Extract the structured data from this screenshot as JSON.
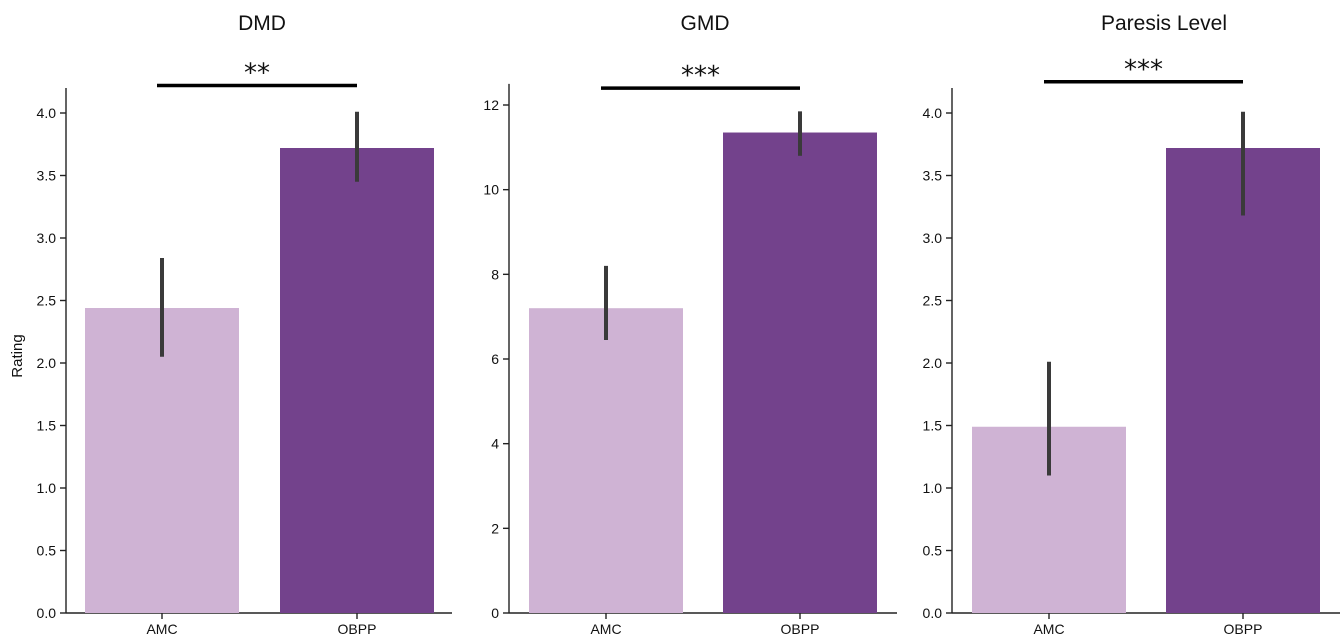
{
  "colors": {
    "AMC": "#cfb3d4",
    "OBPP": "#73428c"
  },
  "chart_data": [
    {
      "type": "bar",
      "title": "DMD",
      "ylabel": "Rating",
      "categories": [
        "AMC",
        "OBPP"
      ],
      "values": [
        2.44,
        3.72
      ],
      "errors": [
        [
          2.05,
          2.84
        ],
        [
          3.45,
          4.01
        ]
      ],
      "ylim": [
        0,
        4.2
      ],
      "yticks": [
        0.0,
        0.5,
        1.0,
        1.5,
        2.0,
        2.5,
        3.0,
        3.5,
        4.0
      ],
      "ytick_labels": [
        "0.0",
        "0.5",
        "1.0",
        "1.5",
        "2.0",
        "2.5",
        "3.0",
        "3.5",
        "4.0"
      ],
      "significance": "**",
      "significance_y": 4.22
    },
    {
      "type": "bar",
      "title": "GMD",
      "ylabel": "",
      "categories": [
        "AMC",
        "OBPP"
      ],
      "values": [
        7.2,
        11.35
      ],
      "errors": [
        [
          6.45,
          8.2
        ],
        [
          10.8,
          11.85
        ]
      ],
      "ylim": [
        0,
        12.5
      ],
      "yticks": [
        0,
        2,
        4,
        6,
        8,
        10,
        12
      ],
      "ytick_labels": [
        "0",
        "2",
        "4",
        "6",
        "8",
        "10",
        "12"
      ],
      "significance": "***",
      "significance_y": 12.4
    },
    {
      "type": "bar",
      "title": "Paresis Level",
      "ylabel": "",
      "categories": [
        "AMC",
        "OBPP"
      ],
      "values": [
        1.49,
        3.72
      ],
      "errors": [
        [
          1.1,
          2.01
        ],
        [
          3.18,
          4.01
        ]
      ],
      "ylim": [
        0,
        4.2
      ],
      "yticks": [
        0.0,
        0.5,
        1.0,
        1.5,
        2.0,
        2.5,
        3.0,
        3.5,
        4.0
      ],
      "ytick_labels": [
        "0.0",
        "0.5",
        "1.0",
        "1.5",
        "2.0",
        "2.5",
        "3.0",
        "3.5",
        "4.0"
      ],
      "significance": "***",
      "significance_y": 4.25
    }
  ]
}
